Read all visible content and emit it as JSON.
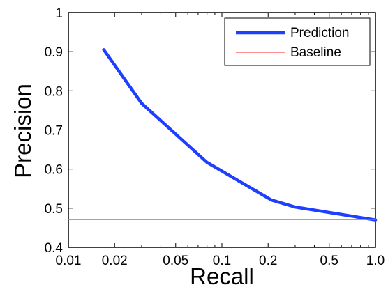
{
  "chart_data": {
    "type": "line",
    "xlabel": "Recall",
    "ylabel": "Precision",
    "xscale": "log",
    "xlim": [
      0.01,
      1.0
    ],
    "ylim": [
      0.4,
      1.0
    ],
    "x_ticks": [
      0.01,
      0.02,
      0.05,
      0.1,
      0.2,
      0.5,
      1.0
    ],
    "x_tick_labels": [
      "0.01",
      "0.02",
      "0.05",
      "0.1",
      "0.2",
      "0.5",
      "1.0"
    ],
    "y_ticks": [
      0.4,
      0.5,
      0.6,
      0.7,
      0.8,
      0.9,
      1.0
    ],
    "y_tick_labels": [
      "0.4",
      "0.5",
      "0.6",
      "0.7",
      "0.8",
      "0.9",
      "1"
    ],
    "grid": false,
    "legend_position": "top-right",
    "series": [
      {
        "name": "Prediction",
        "color": "#1f3fff",
        "style": "thick-line",
        "x": [
          0.017,
          0.03,
          0.08,
          0.21,
          0.3,
          1.0
        ],
        "y": [
          0.905,
          0.768,
          0.617,
          0.521,
          0.503,
          0.47
        ]
      },
      {
        "name": "Baseline",
        "color": "#ff4d4d",
        "style": "thin-line",
        "x": [
          0.01,
          1.0
        ],
        "y": [
          0.471,
          0.471
        ]
      }
    ]
  }
}
